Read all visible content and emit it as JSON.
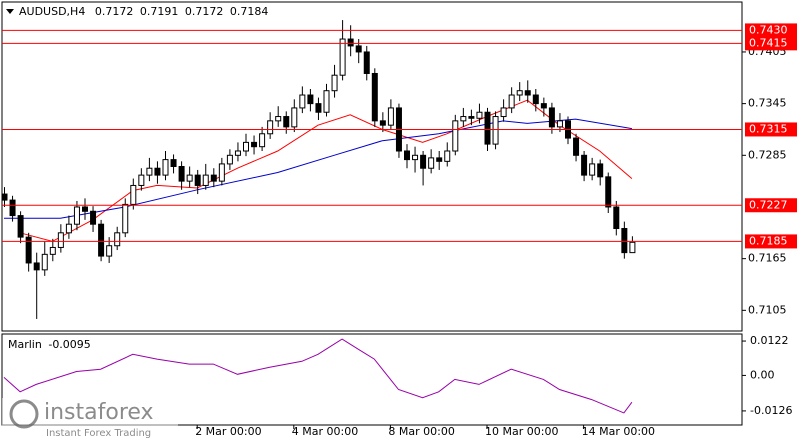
{
  "chart_data": {
    "type": "candlestick",
    "symbol": "AUDUSD,H4",
    "ylim": [
      0.7081,
      0.7463
    ],
    "yticks": [
      0.7405,
      0.7345,
      0.7285,
      0.7165,
      0.7105
    ],
    "levels": [
      {
        "value": 0.743,
        "label": "0.7430"
      },
      0.7415,
      0.7315,
      0.7227,
      0.7185
    ],
    "level_color": "#ff0000",
    "xticks": [
      {
        "value": 24,
        "label": "2 Mar 00:00"
      },
      {
        "value": 36,
        "label": "4 Mar 00:00"
      },
      {
        "value": 48,
        "label": "8 Mar 00:00"
      },
      {
        "value": 60,
        "label": "10 Mar 00:00"
      },
      {
        "value": 72,
        "label": "14 Mar 00:00"
      }
    ],
    "candles": [
      [
        0.724,
        0.7248,
        0.7225,
        0.7233
      ],
      [
        0.7233,
        0.7238,
        0.7208,
        0.7215
      ],
      [
        0.7215,
        0.722,
        0.7183,
        0.719
      ],
      [
        0.719,
        0.7195,
        0.715,
        0.716
      ],
      [
        0.716,
        0.7172,
        0.7095,
        0.7152
      ],
      [
        0.7152,
        0.7185,
        0.7145,
        0.717
      ],
      [
        0.717,
        0.7188,
        0.7162,
        0.7178
      ],
      [
        0.7178,
        0.7205,
        0.7172,
        0.7195
      ],
      [
        0.7195,
        0.7215,
        0.7188,
        0.7205
      ],
      [
        0.7205,
        0.7232,
        0.7198,
        0.7225
      ],
      [
        0.7225,
        0.7235,
        0.721,
        0.722
      ],
      [
        0.722,
        0.7226,
        0.7196,
        0.7205
      ],
      [
        0.7205,
        0.721,
        0.7162,
        0.7168
      ],
      [
        0.7168,
        0.719,
        0.716,
        0.718
      ],
      [
        0.718,
        0.7202,
        0.7175,
        0.7195
      ],
      [
        0.7195,
        0.7235,
        0.719,
        0.7228
      ],
      [
        0.7228,
        0.7258,
        0.7222,
        0.725
      ],
      [
        0.725,
        0.727,
        0.7244,
        0.7262
      ],
      [
        0.7262,
        0.7282,
        0.7255,
        0.727
      ],
      [
        0.727,
        0.7278,
        0.7252,
        0.7262
      ],
      [
        0.7262,
        0.729,
        0.7256,
        0.728
      ],
      [
        0.728,
        0.7286,
        0.7264,
        0.7272
      ],
      [
        0.7272,
        0.7278,
        0.7245,
        0.7255
      ],
      [
        0.7255,
        0.7272,
        0.7248,
        0.7262
      ],
      [
        0.7262,
        0.7268,
        0.724,
        0.725
      ],
      [
        0.725,
        0.7275,
        0.7245,
        0.7262
      ],
      [
        0.7262,
        0.727,
        0.7248,
        0.7255
      ],
      [
        0.7255,
        0.7282,
        0.725,
        0.7275
      ],
      [
        0.7275,
        0.7292,
        0.7268,
        0.7285
      ],
      [
        0.7285,
        0.73,
        0.7278,
        0.729
      ],
      [
        0.729,
        0.731,
        0.7284,
        0.73
      ],
      [
        0.73,
        0.7308,
        0.7286,
        0.7295
      ],
      [
        0.7295,
        0.7318,
        0.729,
        0.731
      ],
      [
        0.731,
        0.7335,
        0.7304,
        0.7325
      ],
      [
        0.7325,
        0.7342,
        0.7318,
        0.733
      ],
      [
        0.733,
        0.7336,
        0.731,
        0.7318
      ],
      [
        0.7318,
        0.735,
        0.7312,
        0.734
      ],
      [
        0.734,
        0.7365,
        0.7334,
        0.7355
      ],
      [
        0.7355,
        0.7362,
        0.7336,
        0.7345
      ],
      [
        0.7345,
        0.7352,
        0.7326,
        0.7335
      ],
      [
        0.7335,
        0.7368,
        0.733,
        0.736
      ],
      [
        0.736,
        0.739,
        0.7352,
        0.7378
      ],
      [
        0.7378,
        0.7442,
        0.7372,
        0.742
      ],
      [
        0.742,
        0.7436,
        0.74,
        0.7412
      ],
      [
        0.7412,
        0.742,
        0.7392,
        0.7405
      ],
      [
        0.7405,
        0.7412,
        0.7372,
        0.738
      ],
      [
        0.738,
        0.7386,
        0.7318,
        0.7325
      ],
      [
        0.7325,
        0.7335,
        0.7312,
        0.732
      ],
      [
        0.732,
        0.735,
        0.7315,
        0.734
      ],
      [
        0.734,
        0.7345,
        0.7282,
        0.729
      ],
      [
        0.729,
        0.7298,
        0.727,
        0.728
      ],
      [
        0.728,
        0.7295,
        0.7265,
        0.7285
      ],
      [
        0.7285,
        0.729,
        0.725,
        0.727
      ],
      [
        0.727,
        0.7292,
        0.7264,
        0.7282
      ],
      [
        0.7282,
        0.729,
        0.7268,
        0.7278
      ],
      [
        0.7278,
        0.73,
        0.7272,
        0.729
      ],
      [
        0.729,
        0.7332,
        0.7285,
        0.7325
      ],
      [
        0.7325,
        0.734,
        0.7318,
        0.733
      ],
      [
        0.733,
        0.7338,
        0.732,
        0.7328
      ],
      [
        0.7328,
        0.7345,
        0.7322,
        0.7335
      ],
      [
        0.7335,
        0.734,
        0.729,
        0.7298
      ],
      [
        0.7298,
        0.7336,
        0.7292,
        0.733
      ],
      [
        0.733,
        0.735,
        0.7324,
        0.734
      ],
      [
        0.734,
        0.7364,
        0.7334,
        0.7355
      ],
      [
        0.7355,
        0.737,
        0.7348,
        0.736
      ],
      [
        0.736,
        0.7372,
        0.7346,
        0.7355
      ],
      [
        0.7355,
        0.7362,
        0.7336,
        0.7345
      ],
      [
        0.7345,
        0.7352,
        0.733,
        0.734
      ],
      [
        0.734,
        0.7346,
        0.731,
        0.7318
      ],
      [
        0.7318,
        0.7334,
        0.7312,
        0.7325
      ],
      [
        0.7325,
        0.733,
        0.7298,
        0.7305
      ],
      [
        0.7305,
        0.731,
        0.7278,
        0.7285
      ],
      [
        0.7285,
        0.729,
        0.7255,
        0.7262
      ],
      [
        0.7262,
        0.7282,
        0.7256,
        0.7275
      ],
      [
        0.7275,
        0.728,
        0.725,
        0.726
      ],
      [
        0.726,
        0.7265,
        0.7218,
        0.7225
      ],
      [
        0.7225,
        0.7232,
        0.7192,
        0.72
      ],
      [
        0.72,
        0.7208,
        0.7165,
        0.7172
      ],
      [
        0.7172,
        0.7191,
        0.7172,
        0.7184
      ]
    ],
    "series": [
      {
        "color": "#ff0000",
        "x": [
          2,
          6,
          11,
          16,
          19,
          24,
          29,
          34,
          39,
          43,
          47,
          52,
          55,
          60,
          65,
          69,
          74,
          78
        ],
        "values": [
          0.7195,
          0.7185,
          0.721,
          0.7244,
          0.725,
          0.7247,
          0.727,
          0.729,
          0.732,
          0.7332,
          0.7315,
          0.73,
          0.731,
          0.733,
          0.7349,
          0.732,
          0.729,
          0.7258
        ]
      },
      {
        "color": "#0000cc",
        "x": [
          0,
          7,
          15,
          24,
          34,
          41,
          47,
          54,
          62,
          65,
          71,
          78
        ],
        "values": [
          0.7212,
          0.7212,
          0.7225,
          0.7245,
          0.7265,
          0.7285,
          0.7302,
          0.731,
          0.7325,
          0.7322,
          0.7327,
          0.7316
        ]
      }
    ],
    "indicator": {
      "name": "Marlin",
      "color": "#9900aa",
      "ylim": [
        -0.0176,
        0.0147
      ],
      "yticks": [
        0.0122,
        {
          "value": 0,
          "label": "0.00"
        },
        -0.0126
      ],
      "x": [
        0,
        2,
        4,
        9,
        12,
        16,
        19,
        23,
        26,
        29,
        33,
        37,
        39,
        42,
        44,
        46,
        49,
        52,
        54,
        56,
        59,
        63,
        67,
        69,
        73,
        77,
        78
      ],
      "values": [
        -0.0007,
        -0.0058,
        -0.0032,
        0.0014,
        0.0022,
        0.0075,
        0.0058,
        0.004,
        0.004,
        0.0004,
        0.0029,
        0.005,
        0.0075,
        0.0129,
        0.0093,
        0.0058,
        -0.005,
        -0.0079,
        -0.0058,
        -0.0014,
        -0.0032,
        0.0022,
        -0.0014,
        -0.005,
        -0.0086,
        -0.0133,
        -0.0095
      ]
    },
    "watermark": {
      "brand": "instaforex",
      "tagline": "Instant Forex Trading"
    }
  }
}
